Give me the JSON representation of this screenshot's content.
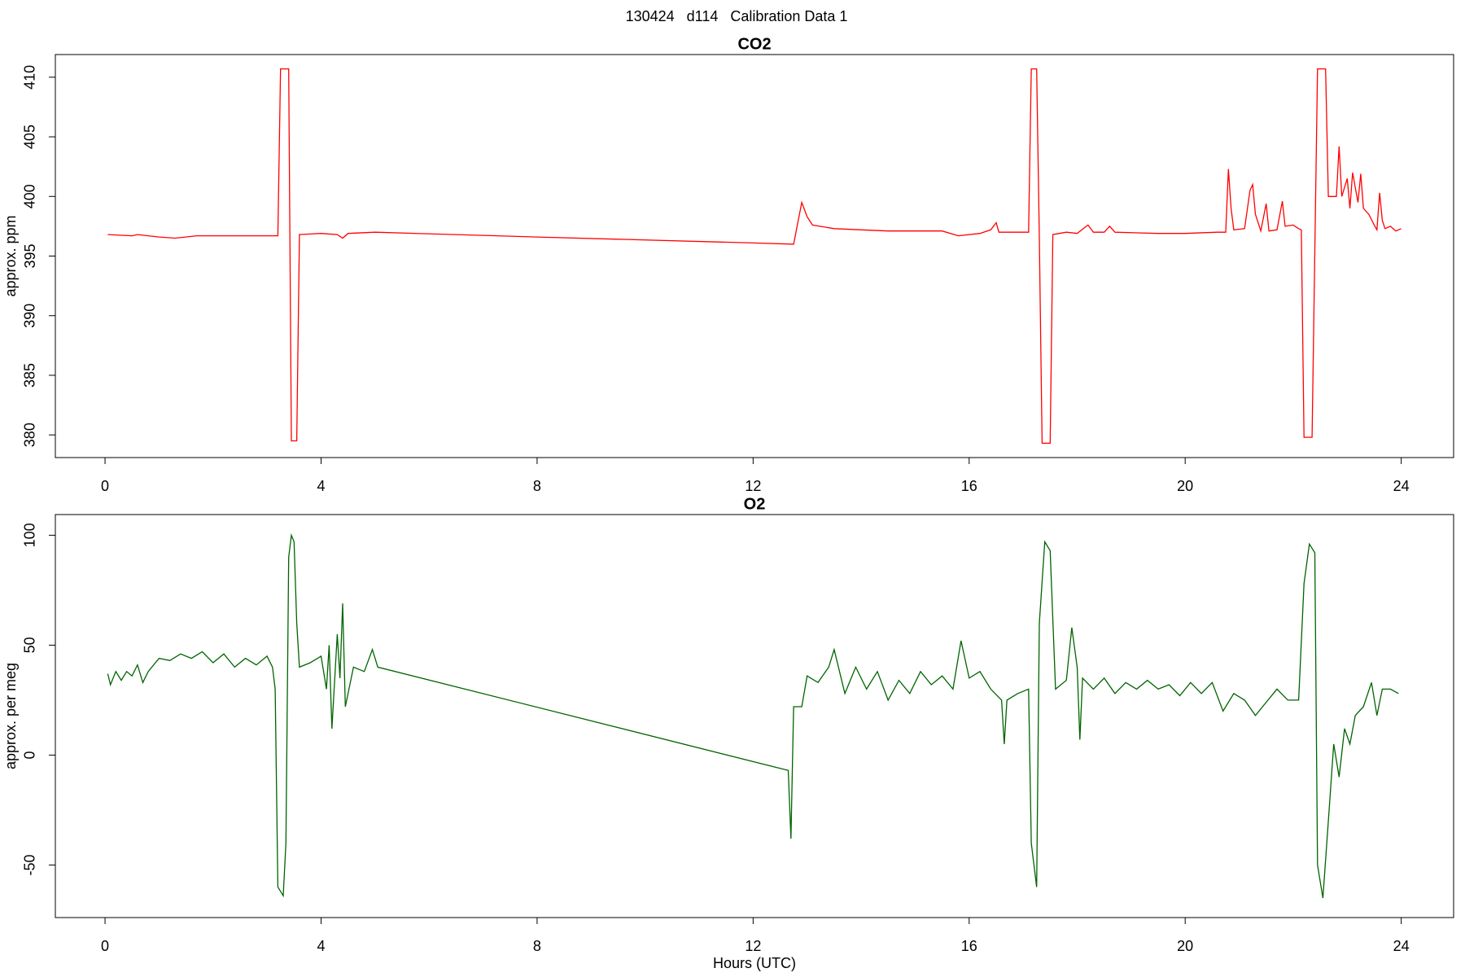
{
  "title": "130424   d114   Calibration Data 1",
  "chart_data": [
    {
      "type": "line",
      "title": "CO2",
      "y_label": "approx. ppm",
      "x": [
        0.05,
        0.5,
        0.6,
        1.0,
        1.3,
        1.7,
        2.5,
        3.1,
        3.2,
        3.25,
        3.35,
        3.4,
        3.45,
        3.55,
        3.6,
        4.0,
        4.3,
        4.4,
        4.5,
        5,
        8,
        12,
        12.75,
        12.9,
        13.0,
        13.1,
        13.5,
        14,
        14.5,
        15.5,
        15.8,
        16.2,
        16.4,
        16.5,
        16.55,
        17.1,
        17.15,
        17.25,
        17.3,
        17.35,
        17.5,
        17.55,
        17.8,
        18,
        18.2,
        18.3,
        18.5,
        18.6,
        18.7,
        19.5,
        20.0,
        20.6,
        20.75,
        20.8,
        20.85,
        20.9,
        21.1,
        21.2,
        21.25,
        21.3,
        21.4,
        21.5,
        21.55,
        21.7,
        21.8,
        21.85,
        22.0,
        22.1,
        22.15,
        22.2,
        22.35,
        22.45,
        22.6,
        22.65,
        22.8,
        22.85,
        22.9,
        23.0,
        23.05,
        23.1,
        23.2,
        23.25,
        23.3,
        23.4,
        23.5,
        23.55,
        23.6,
        23.65,
        23.7,
        23.8,
        23.9,
        24.0
      ],
      "series": [
        {
          "color": "#ff0000",
          "values": [
            396.8,
            396.7,
            396.8,
            396.6,
            396.5,
            396.7,
            396.7,
            396.7,
            396.7,
            410.7,
            410.7,
            410.7,
            379.5,
            379.5,
            396.8,
            396.9,
            396.8,
            396.5,
            396.9,
            397.0,
            396.6,
            396.1,
            396.0,
            399.5,
            398.3,
            397.6,
            397.3,
            397.2,
            397.1,
            397.1,
            396.7,
            396.9,
            397.2,
            397.8,
            397.0,
            397.0,
            410.7,
            410.7,
            396.5,
            379.3,
            379.3,
            396.8,
            397.0,
            396.9,
            397.6,
            397.0,
            397.0,
            397.5,
            397.0,
            396.9,
            396.9,
            397.0,
            397.0,
            402.3,
            399.0,
            397.2,
            397.3,
            400.5,
            401.0,
            398.5,
            397.1,
            399.4,
            397.1,
            397.2,
            399.6,
            397.5,
            397.6,
            397.3,
            397.2,
            379.8,
            379.8,
            410.7,
            410.7,
            400.0,
            400.0,
            404.2,
            400.0,
            401.5,
            399.0,
            402.0,
            399.5,
            401.9,
            399.0,
            398.5,
            397.6,
            397.2,
            400.3,
            398.0,
            397.3,
            397.5,
            397.1,
            397.3
          ]
        }
      ],
      "xlim": [
        -0.92,
        24.97
      ],
      "ylim": [
        378.1,
        411.9
      ],
      "xticks": [
        0,
        4,
        8,
        12,
        16,
        20,
        24
      ],
      "yticks": [
        380,
        385,
        390,
        395,
        400,
        405,
        410
      ]
    },
    {
      "type": "line",
      "title": "O2",
      "y_label": "approx. per meg",
      "x_label": "Hours (UTC)",
      "x": [
        0.05,
        0.1,
        0.2,
        0.3,
        0.4,
        0.5,
        0.6,
        0.7,
        0.8,
        1.0,
        1.2,
        1.4,
        1.6,
        1.8,
        2.0,
        2.2,
        2.4,
        2.6,
        2.8,
        3.0,
        3.1,
        3.15,
        3.2,
        3.3,
        3.35,
        3.4,
        3.45,
        3.5,
        3.55,
        3.6,
        3.8,
        4.0,
        4.1,
        4.15,
        4.2,
        4.3,
        4.35,
        4.4,
        4.45,
        4.6,
        4.8,
        4.95,
        5.05,
        12.65,
        12.7,
        12.75,
        12.9,
        13.0,
        13.2,
        13.4,
        13.5,
        13.7,
        13.9,
        14.1,
        14.3,
        14.5,
        14.7,
        14.9,
        15.1,
        15.3,
        15.5,
        15.7,
        15.85,
        16.0,
        16.2,
        16.4,
        16.6,
        16.65,
        16.7,
        16.9,
        17.1,
        17.15,
        17.25,
        17.3,
        17.4,
        17.5,
        17.6,
        17.8,
        17.9,
        18.0,
        18.05,
        18.1,
        18.3,
        18.5,
        18.7,
        18.9,
        19.1,
        19.3,
        19.5,
        19.7,
        19.9,
        20.1,
        20.3,
        20.5,
        20.7,
        20.9,
        21.1,
        21.3,
        21.5,
        21.7,
        21.9,
        22.1,
        22.2,
        22.3,
        22.4,
        22.45,
        22.55,
        22.65,
        22.75,
        22.85,
        22.95,
        23.05,
        23.15,
        23.3,
        23.45,
        23.55,
        23.65,
        23.8,
        23.95
      ],
      "series": [
        {
          "color": "#006400",
          "values": [
            37,
            32,
            38,
            34,
            38,
            36,
            41,
            33,
            38,
            44,
            43,
            46,
            44,
            47,
            42,
            46,
            40,
            44,
            41,
            45,
            40,
            30,
            -60,
            -64,
            -40,
            90,
            100,
            97,
            60,
            40,
            42,
            45,
            30,
            50,
            12,
            55,
            35,
            69,
            22,
            40,
            38,
            48,
            40,
            -7,
            -38,
            22,
            22,
            36,
            33,
            40,
            48,
            28,
            40,
            30,
            38,
            25,
            34,
            28,
            38,
            32,
            36,
            30,
            52,
            35,
            38,
            30,
            25,
            5,
            25,
            28,
            30,
            -40,
            -60,
            60,
            97,
            93,
            30,
            34,
            58,
            40,
            7,
            35,
            30,
            35,
            28,
            33,
            30,
            34,
            30,
            32,
            27,
            33,
            28,
            33,
            20,
            28,
            25,
            18,
            24,
            30,
            25,
            25,
            78,
            96,
            92,
            -50,
            -65,
            -30,
            5,
            -10,
            12,
            5,
            18,
            22,
            33,
            18,
            30,
            30,
            28
          ]
        }
      ],
      "xlim": [
        -0.92,
        24.97
      ],
      "ylim": [
        -73.9,
        109.4
      ],
      "xticks": [
        0,
        4,
        8,
        12,
        16,
        20,
        24
      ],
      "yticks": [
        -50,
        0,
        50,
        100
      ]
    }
  ]
}
